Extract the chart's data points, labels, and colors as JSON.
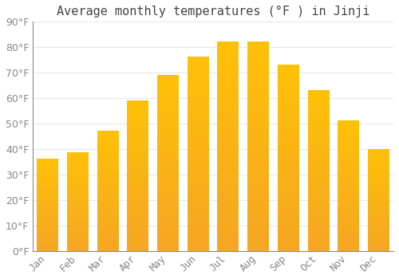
{
  "title": "Average monthly temperatures (°F ) in Jinji",
  "months": [
    "Jan",
    "Feb",
    "Mar",
    "Apr",
    "May",
    "Jun",
    "Jul",
    "Aug",
    "Sep",
    "Oct",
    "Nov",
    "Dec"
  ],
  "values": [
    36,
    38.5,
    47,
    59,
    69,
    76,
    82,
    82,
    73,
    63,
    51,
    40
  ],
  "bar_color_top": "#FFC107",
  "bar_color_bottom": "#F5A623",
  "background_color": "#FFFFFF",
  "grid_color": "#E8E8E8",
  "ylim": [
    0,
    90
  ],
  "yticks": [
    0,
    10,
    20,
    30,
    40,
    50,
    60,
    70,
    80,
    90
  ],
  "title_fontsize": 11,
  "tick_fontsize": 9,
  "font_family": "monospace"
}
